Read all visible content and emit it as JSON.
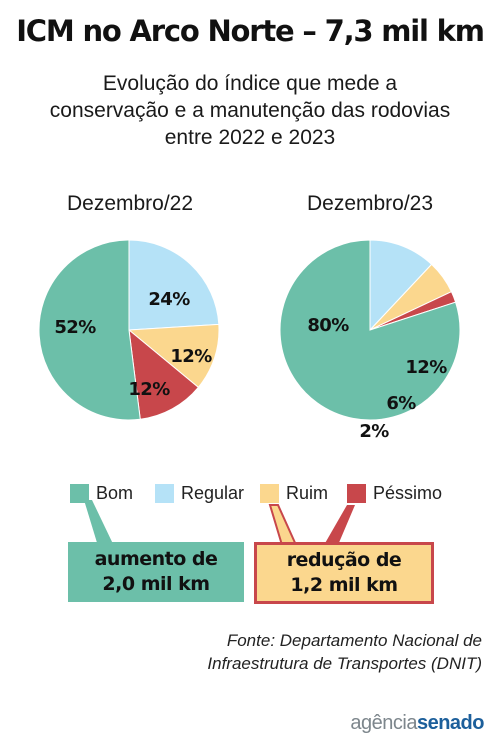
{
  "header": {
    "title": "ICM no Arco Norte  – 7,3 mil km",
    "subtitle_lines": [
      "Evolução do índice que mede a",
      "conservação e a manutenção das rodovias",
      "entre 2022 e 2023"
    ]
  },
  "chart_data": [
    {
      "type": "pie",
      "title": "Dezembro/22",
      "categories": [
        "Bom",
        "Regular",
        "Ruim",
        "Péssimo"
      ],
      "values": [
        52,
        24,
        12,
        12
      ],
      "labels": [
        "52%",
        "24%",
        "12%",
        "12%"
      ],
      "colors": [
        "#6cbfa9",
        "#b5e2f7",
        "#fbd78e",
        "#c8474b"
      ]
    },
    {
      "type": "pie",
      "title": "Dezembro/23",
      "categories": [
        "Bom",
        "Regular",
        "Ruim",
        "Péssimo"
      ],
      "values": [
        80,
        12,
        6,
        2
      ],
      "labels": [
        "80%",
        "12%",
        "6%",
        "2%"
      ],
      "colors": [
        "#6cbfa9",
        "#b5e2f7",
        "#fbd78e",
        "#c8474b"
      ]
    }
  ],
  "legend": {
    "items": [
      {
        "label": "Bom",
        "color": "#6cbfa9"
      },
      {
        "label": "Regular",
        "color": "#b5e2f7"
      },
      {
        "label": "Ruim",
        "color": "#fbd78e"
      },
      {
        "label": "Péssimo",
        "color": "#c8474b"
      }
    ]
  },
  "callouts": {
    "good": {
      "lines": [
        "aumento de",
        "2,0 mil km"
      ],
      "fill": "#6cbfa9"
    },
    "bad": {
      "lines": [
        "redução de",
        "1,2 mil km"
      ],
      "fill": "#fbd78e",
      "border": "#c8474b"
    }
  },
  "source": {
    "lines": [
      "Fonte: Departamento Nacional de",
      "Infraestrutura de Transportes (DNIT)"
    ]
  },
  "brand": {
    "part1": "agência",
    "part2": "senado"
  }
}
